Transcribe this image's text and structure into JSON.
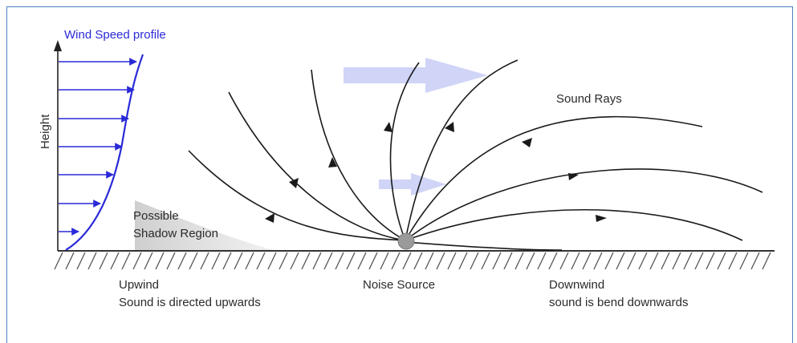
{
  "labels": {
    "wind_profile": "Wind Speed profile",
    "height": "Height",
    "sound_rays": "Sound Rays",
    "shadow_line1": "Possible",
    "shadow_line2": "Shadow Region",
    "upwind_line1": "Upwind",
    "upwind_line2": "Sound is directed upwards",
    "noise_source": "Noise Source",
    "downwind_line1": "Downwind",
    "downwind_line2": "sound is bend downwards"
  },
  "colors": {
    "frame": "#4f81bd",
    "wind_profile": "#2a2ad8",
    "wind_arrows_big": "#c8cdf5",
    "rays": "#1a1a1a",
    "source": "#9a9a9a",
    "shadow": "#d6d6d6"
  },
  "icons": {
    "wind_direction": "wide-arrow-right",
    "noise_source": "filled-circle"
  }
}
